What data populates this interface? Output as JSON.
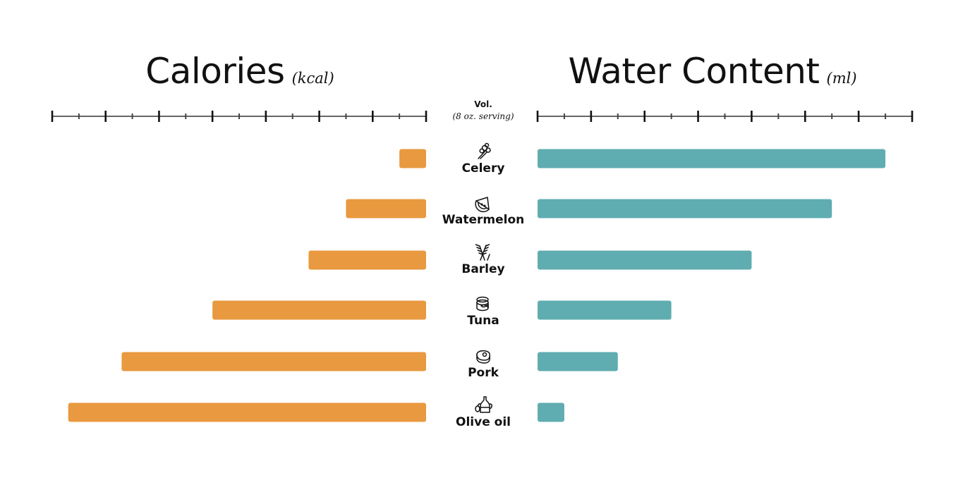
{
  "chart_data": [
    {
      "type": "bar",
      "title": "Calories",
      "unit": "(kcal)",
      "orientation": "horizontal-left",
      "categories": [
        "Celery",
        "Watermelon",
        "Barley",
        "Tuna",
        "Pork",
        "Olive oil"
      ],
      "values": [
        5,
        15,
        22,
        40,
        57,
        67
      ],
      "xlim": [
        0,
        70
      ],
      "tick_labels": "none",
      "color": "#E9993F"
    },
    {
      "type": "bar",
      "title": "Water Content",
      "unit": "(ml)",
      "orientation": "horizontal-right",
      "categories": [
        "Celery",
        "Watermelon",
        "Barley",
        "Tuna",
        "Pork",
        "Olive oil"
      ],
      "values": [
        65,
        55,
        40,
        25,
        15,
        5
      ],
      "xlim": [
        0,
        70
      ],
      "tick_labels": "none",
      "color": "#5FADB0"
    }
  ],
  "center": {
    "vol_label": "Vol.",
    "vol_sub": "(8 oz. serving)",
    "icons": [
      "celery-icon",
      "watermelon-icon",
      "barley-icon",
      "tuna-can-icon",
      "pork-steak-icon",
      "olive-oil-bottle-icon"
    ]
  }
}
